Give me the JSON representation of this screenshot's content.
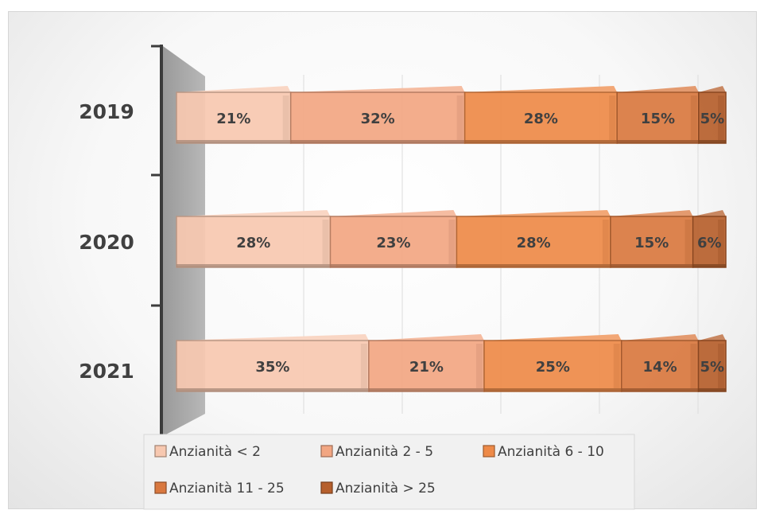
{
  "chart_data": {
    "type": "bar",
    "orientation": "horizontal",
    "stacked": true,
    "percent_stacked": true,
    "three_d": true,
    "categories": [
      "2019",
      "2020",
      "2021"
    ],
    "series": [
      {
        "name": "Anzianità < 2",
        "color": "#f7c8b0",
        "values": [
          21,
          28,
          35
        ],
        "labels": [
          "21%",
          "28%",
          "35%"
        ]
      },
      {
        "name": "Anzianità 2 - 5",
        "color": "#f2a682",
        "values": [
          32,
          23,
          21
        ],
        "labels": [
          "32%",
          "23%",
          "21%"
        ]
      },
      {
        "name": "Anzianità 6 - 10",
        "color": "#ee8a48",
        "values": [
          28,
          28,
          25
        ],
        "labels": [
          "28%",
          "28%",
          "25%"
        ]
      },
      {
        "name": "Anzianità 11 - 25",
        "color": "#d9783f",
        "values": [
          15,
          15,
          14
        ],
        "labels": [
          "15%",
          "15%",
          "14%"
        ]
      },
      {
        "name": "Anzianità > 25",
        "color": "#b65f2c",
        "values": [
          5,
          6,
          5
        ],
        "labels": [
          "5%",
          "6%",
          "5%"
        ]
      }
    ],
    "xlim": [
      0,
      100
    ],
    "grid": true,
    "legend_position": "bottom",
    "title": "",
    "xlabel": "",
    "ylabel": ""
  }
}
